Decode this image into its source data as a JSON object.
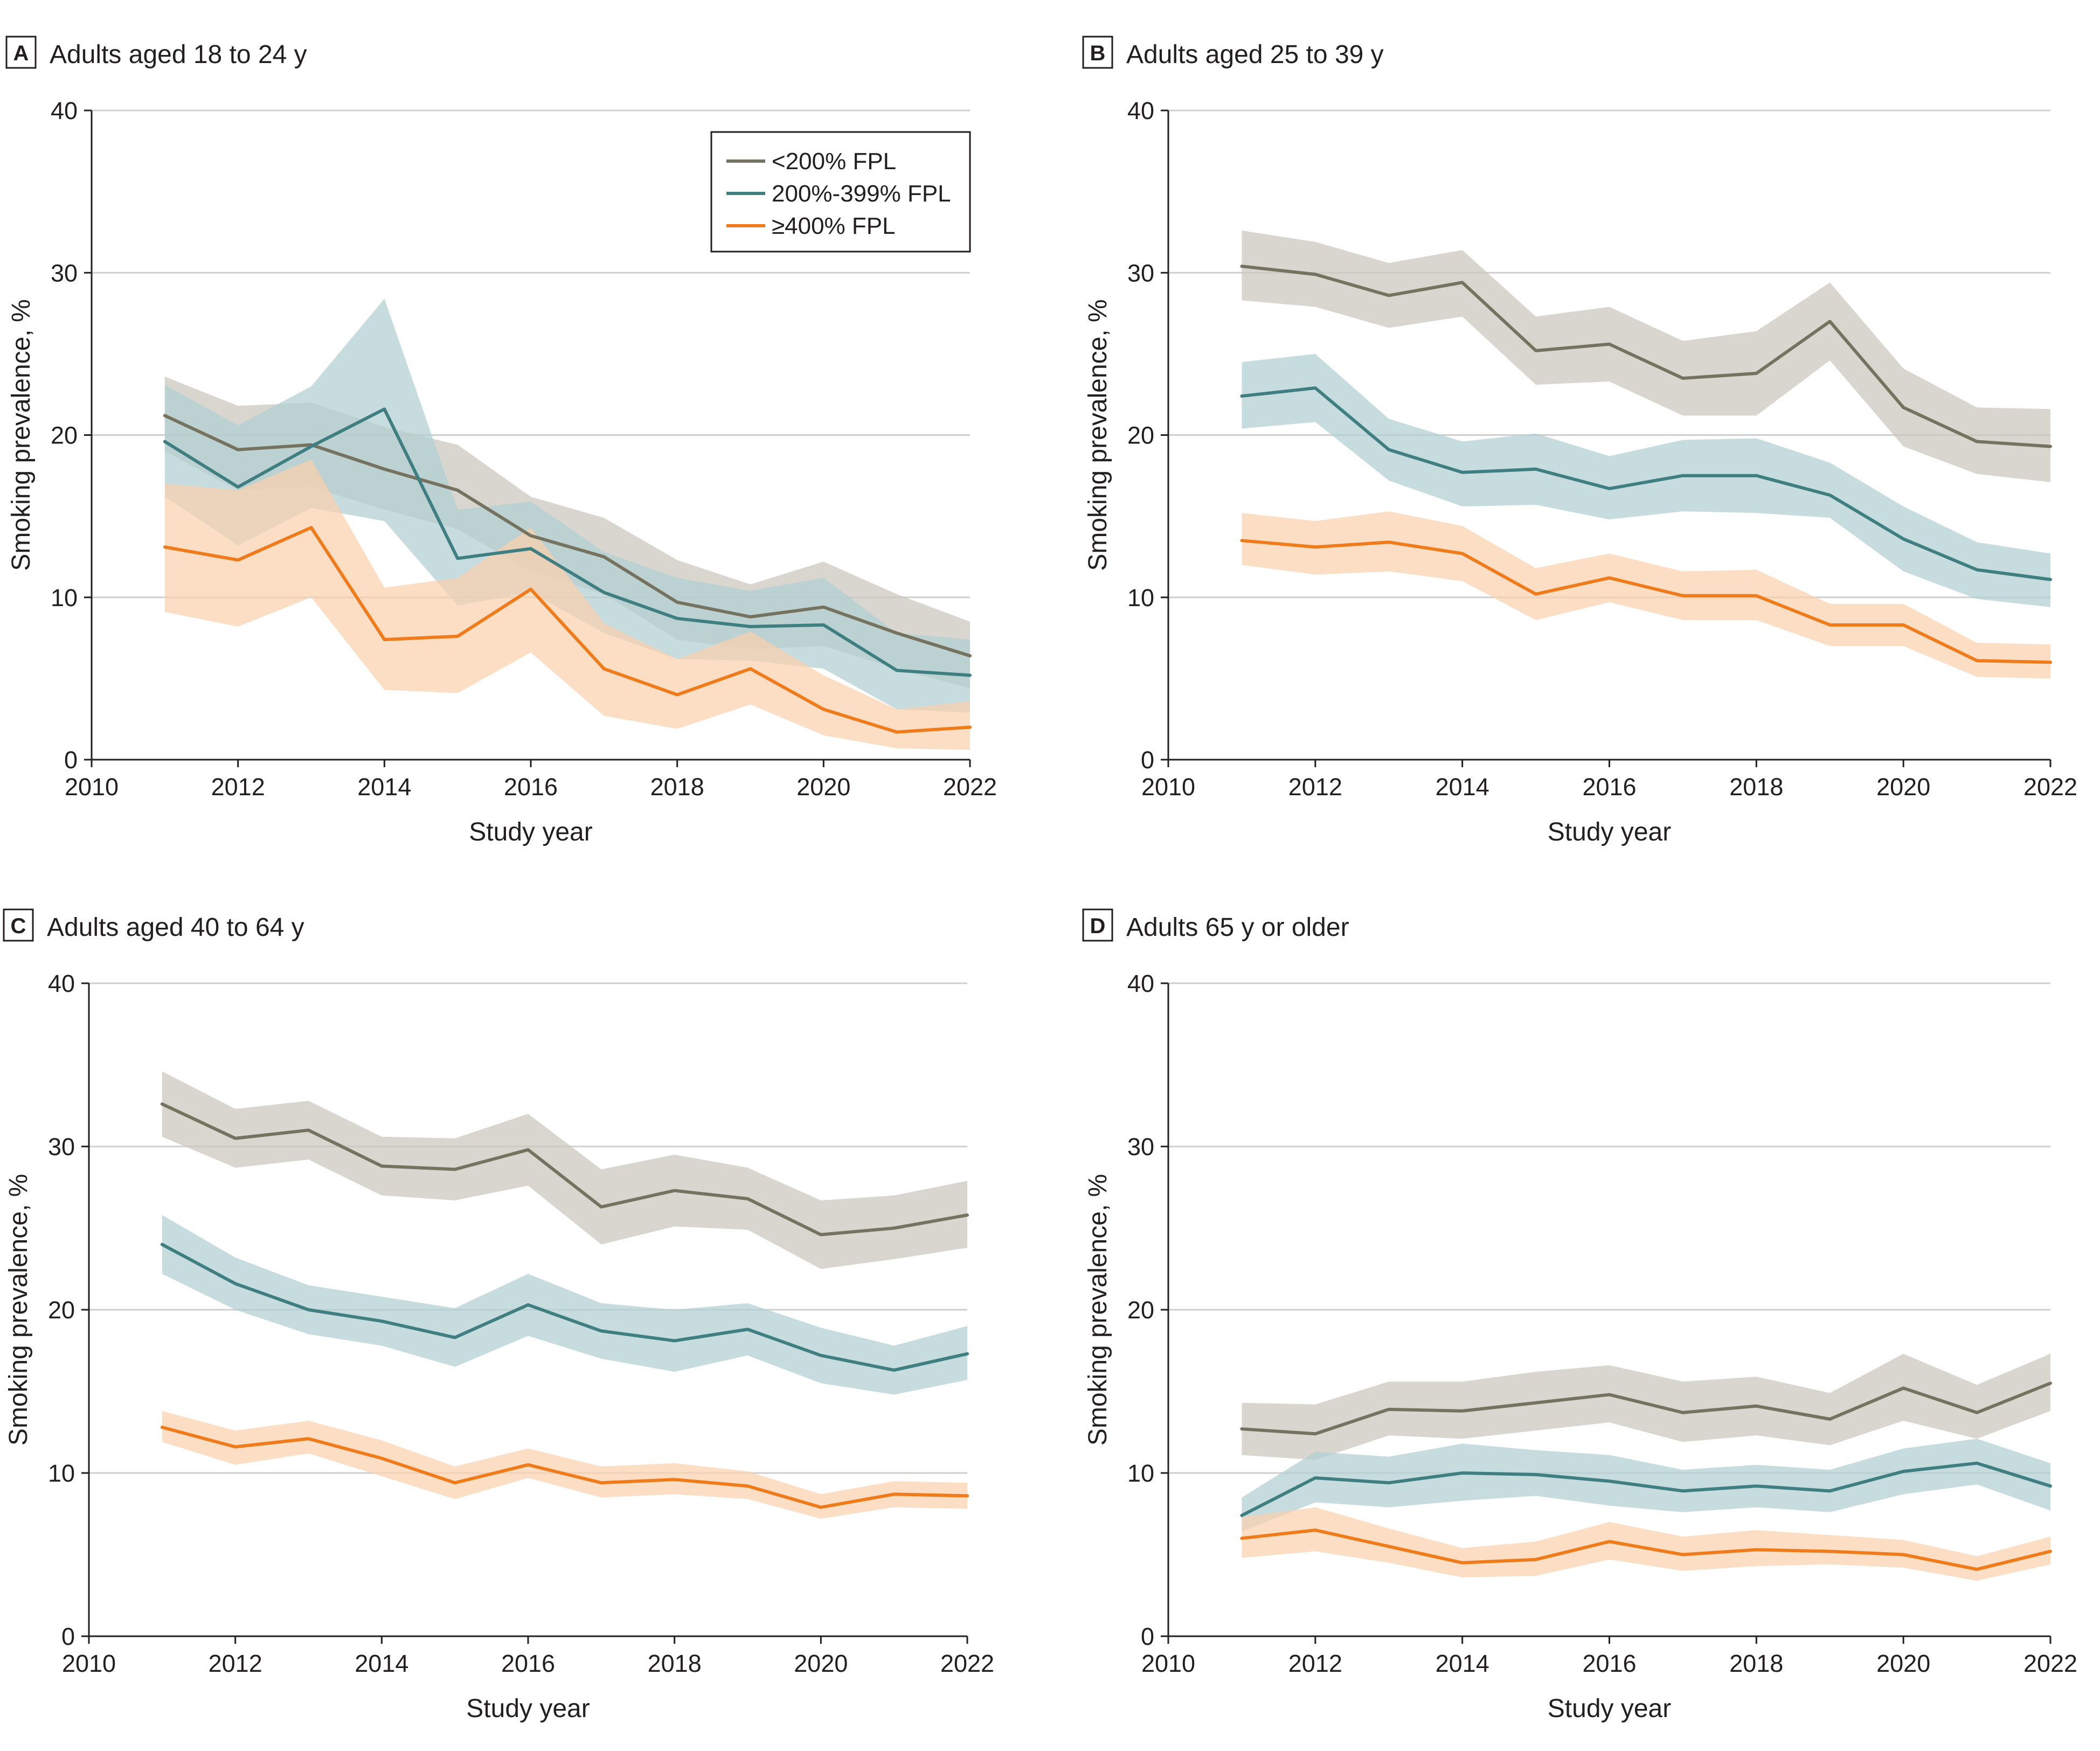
{
  "figure": {
    "colors": {
      "low": "#75735f",
      "mid": "#3f7f82",
      "high": "#f07b1a",
      "low_band": "#c9c6bc",
      "mid_band": "#b2ced1",
      "high_band": "#fbd1ae",
      "grid": "#cfcfcf",
      "axis": "#231f20"
    }
  },
  "chart_data": [
    {
      "type": "line",
      "panel": "A",
      "title": "Adults aged 18 to 24 y",
      "xlabel": "Study year",
      "ylabel": "Smoking prevalence, %",
      "xlim": [
        2010,
        2022
      ],
      "ylim": [
        0,
        40
      ],
      "xticks": [
        2010,
        2012,
        2014,
        2016,
        2018,
        2020,
        2022
      ],
      "yticks": [
        0,
        10,
        20,
        30,
        40
      ],
      "grid": true,
      "legend": {
        "position": "top-right",
        "entries": [
          "<200% FPL",
          "200%-399% FPL",
          "≥400% FPL"
        ]
      },
      "x": [
        2011,
        2012,
        2013,
        2014,
        2015,
        2016,
        2017,
        2018,
        2019,
        2020,
        2021,
        2022
      ],
      "series": [
        {
          "name": "<200% FPL",
          "color_key": "low",
          "values": [
            21.2,
            19.1,
            19.4,
            17.9,
            16.6,
            13.8,
            12.5,
            9.7,
            8.8,
            9.4,
            7.8,
            6.4
          ],
          "lower": [
            19.0,
            16.6,
            16.8,
            15.4,
            14.2,
            11.6,
            10.2,
            7.4,
            6.8,
            7.0,
            5.6,
            4.4
          ],
          "upper": [
            23.6,
            21.8,
            22.0,
            20.5,
            19.4,
            16.2,
            14.9,
            12.3,
            10.8,
            12.2,
            10.2,
            8.5
          ]
        },
        {
          "name": "200%-399% FPL",
          "color_key": "mid",
          "values": [
            19.6,
            16.8,
            19.3,
            21.6,
            12.4,
            13.0,
            10.3,
            8.7,
            8.2,
            8.3,
            5.5,
            5.2
          ],
          "lower": [
            16.2,
            13.2,
            15.5,
            14.7,
            9.5,
            10.3,
            7.8,
            6.2,
            6.1,
            5.6,
            3.1,
            2.9
          ],
          "upper": [
            23.1,
            20.6,
            23.0,
            28.4,
            15.4,
            15.9,
            12.8,
            11.2,
            10.4,
            11.2,
            7.8,
            7.4
          ]
        },
        {
          "name": "≥400% FPL",
          "color_key": "high",
          "values": [
            13.1,
            12.3,
            14.3,
            7.4,
            7.6,
            10.5,
            5.6,
            4.0,
            5.6,
            3.1,
            1.7,
            2.0
          ],
          "lower": [
            9.1,
            8.2,
            10.0,
            4.3,
            4.1,
            6.6,
            2.7,
            1.9,
            3.4,
            1.5,
            0.7,
            0.6
          ],
          "upper": [
            17.0,
            16.6,
            18.5,
            10.6,
            11.2,
            14.3,
            8.4,
            6.2,
            7.9,
            5.2,
            3.1,
            3.6
          ]
        }
      ]
    },
    {
      "type": "line",
      "panel": "B",
      "title": "Adults aged 25 to 39 y",
      "xlabel": "Study year",
      "ylabel": "Smoking prevalence, %",
      "xlim": [
        2010,
        2022
      ],
      "ylim": [
        0,
        40
      ],
      "xticks": [
        2010,
        2012,
        2014,
        2016,
        2018,
        2020,
        2022
      ],
      "yticks": [
        0,
        10,
        20,
        30,
        40
      ],
      "grid": true,
      "x": [
        2011,
        2012,
        2013,
        2014,
        2015,
        2016,
        2017,
        2018,
        2019,
        2020,
        2021,
        2022
      ],
      "series": [
        {
          "name": "<200% FPL",
          "color_key": "low",
          "values": [
            30.4,
            29.9,
            28.6,
            29.4,
            25.2,
            25.6,
            23.5,
            23.8,
            27.0,
            21.7,
            19.6,
            19.3
          ],
          "lower": [
            28.3,
            27.9,
            26.6,
            27.3,
            23.1,
            23.3,
            21.2,
            21.2,
            24.6,
            19.3,
            17.6,
            17.1
          ],
          "upper": [
            32.6,
            31.9,
            30.6,
            31.4,
            27.3,
            27.9,
            25.8,
            26.4,
            29.4,
            24.1,
            21.7,
            21.6
          ]
        },
        {
          "name": "200%-399% FPL",
          "color_key": "mid",
          "values": [
            22.4,
            22.9,
            19.1,
            17.7,
            17.9,
            16.7,
            17.5,
            17.5,
            16.3,
            13.6,
            11.7,
            11.1
          ],
          "lower": [
            20.4,
            20.8,
            17.2,
            15.6,
            15.7,
            14.8,
            15.3,
            15.2,
            14.9,
            11.6,
            9.9,
            9.4
          ],
          "upper": [
            24.5,
            25.0,
            21.0,
            19.6,
            20.1,
            18.7,
            19.7,
            19.8,
            18.3,
            15.6,
            13.4,
            12.7
          ]
        },
        {
          "name": "≥400% FPL",
          "color_key": "high",
          "values": [
            13.5,
            13.1,
            13.4,
            12.7,
            10.2,
            11.2,
            10.1,
            10.1,
            8.3,
            8.3,
            6.1,
            6.0
          ],
          "lower": [
            12.0,
            11.4,
            11.6,
            11.0,
            8.6,
            9.7,
            8.6,
            8.6,
            7.0,
            7.0,
            5.1,
            5.0
          ],
          "upper": [
            15.2,
            14.7,
            15.3,
            14.4,
            11.8,
            12.7,
            11.6,
            11.7,
            9.6,
            9.6,
            7.2,
            7.1
          ]
        }
      ]
    },
    {
      "type": "line",
      "panel": "C",
      "title": "Adults aged 40 to 64 y",
      "xlabel": "Study year",
      "ylabel": "Smoking prevalence, %",
      "xlim": [
        2010,
        2022
      ],
      "ylim": [
        0,
        40
      ],
      "xticks": [
        2010,
        2012,
        2014,
        2016,
        2018,
        2020,
        2022
      ],
      "yticks": [
        0,
        10,
        20,
        30,
        40
      ],
      "grid": true,
      "x": [
        2011,
        2012,
        2013,
        2014,
        2015,
        2016,
        2017,
        2018,
        2019,
        2020,
        2021,
        2022
      ],
      "series": [
        {
          "name": "<200% FPL",
          "color_key": "low",
          "values": [
            32.6,
            30.5,
            31.0,
            28.8,
            28.6,
            29.8,
            26.3,
            27.3,
            26.8,
            24.6,
            25.0,
            25.8
          ],
          "lower": [
            30.6,
            28.7,
            29.2,
            27.0,
            26.7,
            27.6,
            24.0,
            25.1,
            24.9,
            22.5,
            23.1,
            23.8
          ],
          "upper": [
            34.6,
            32.3,
            32.8,
            30.6,
            30.5,
            32.0,
            28.6,
            29.5,
            28.7,
            26.7,
            27.0,
            27.9
          ]
        },
        {
          "name": "200%-399% FPL",
          "color_key": "mid",
          "values": [
            24.0,
            21.6,
            20.0,
            19.3,
            18.3,
            20.3,
            18.7,
            18.1,
            18.8,
            17.2,
            16.3,
            17.3
          ],
          "lower": [
            22.2,
            20.0,
            18.5,
            17.8,
            16.5,
            18.4,
            17.0,
            16.2,
            17.2,
            15.5,
            14.8,
            15.7
          ],
          "upper": [
            25.8,
            23.2,
            21.5,
            20.8,
            20.1,
            22.2,
            20.4,
            20.0,
            20.4,
            18.9,
            17.8,
            19.0
          ]
        },
        {
          "name": "≥400% FPL",
          "color_key": "high",
          "values": [
            12.8,
            11.6,
            12.1,
            10.9,
            9.4,
            10.5,
            9.4,
            9.6,
            9.2,
            7.9,
            8.7,
            8.6
          ],
          "lower": [
            11.9,
            10.5,
            11.2,
            9.8,
            8.4,
            9.7,
            8.5,
            8.7,
            8.4,
            7.2,
            7.9,
            7.8
          ],
          "upper": [
            13.8,
            12.6,
            13.2,
            12.0,
            10.4,
            11.5,
            10.4,
            10.6,
            10.1,
            8.7,
            9.5,
            9.4
          ]
        }
      ]
    },
    {
      "type": "line",
      "panel": "D",
      "title": "Adults 65 y or older",
      "xlabel": "Study year",
      "ylabel": "Smoking prevalence, %",
      "xlim": [
        2010,
        2022
      ],
      "ylim": [
        0,
        40
      ],
      "xticks": [
        2010,
        2012,
        2014,
        2016,
        2018,
        2020,
        2022
      ],
      "yticks": [
        0,
        10,
        20,
        30,
        40
      ],
      "grid": true,
      "x": [
        2011,
        2012,
        2013,
        2014,
        2015,
        2016,
        2017,
        2018,
        2019,
        2020,
        2021,
        2022
      ],
      "series": [
        {
          "name": "<200% FPL",
          "color_key": "low",
          "values": [
            12.7,
            12.4,
            13.9,
            13.8,
            14.3,
            14.8,
            13.7,
            14.1,
            13.3,
            15.2,
            13.7,
            15.5
          ],
          "lower": [
            11.1,
            10.8,
            12.3,
            12.1,
            12.6,
            13.1,
            11.9,
            12.3,
            11.7,
            13.2,
            12.1,
            13.8
          ],
          "upper": [
            14.3,
            14.2,
            15.6,
            15.6,
            16.2,
            16.6,
            15.6,
            15.9,
            14.9,
            17.3,
            15.4,
            17.3
          ]
        },
        {
          "name": "200%-399% FPL",
          "color_key": "mid",
          "values": [
            7.4,
            9.7,
            9.4,
            10.0,
            9.9,
            9.5,
            8.9,
            9.2,
            8.9,
            10.1,
            10.6,
            9.2
          ],
          "lower": [
            6.4,
            8.2,
            7.9,
            8.3,
            8.6,
            8.0,
            7.6,
            7.9,
            7.6,
            8.7,
            9.3,
            7.7
          ],
          "upper": [
            8.5,
            11.3,
            11.0,
            11.8,
            11.4,
            11.1,
            10.2,
            10.5,
            10.2,
            11.5,
            12.1,
            10.6
          ]
        },
        {
          "name": "≥400% FPL",
          "color_key": "high",
          "values": [
            6.0,
            6.5,
            5.5,
            4.5,
            4.7,
            5.8,
            5.0,
            5.3,
            5.2,
            5.0,
            4.1,
            5.2
          ],
          "lower": [
            4.8,
            5.2,
            4.5,
            3.6,
            3.7,
            4.7,
            4.0,
            4.3,
            4.4,
            4.2,
            3.4,
            4.4
          ],
          "upper": [
            7.3,
            7.9,
            6.6,
            5.4,
            5.8,
            7.0,
            6.1,
            6.5,
            6.2,
            5.9,
            4.9,
            6.1
          ]
        }
      ]
    }
  ]
}
